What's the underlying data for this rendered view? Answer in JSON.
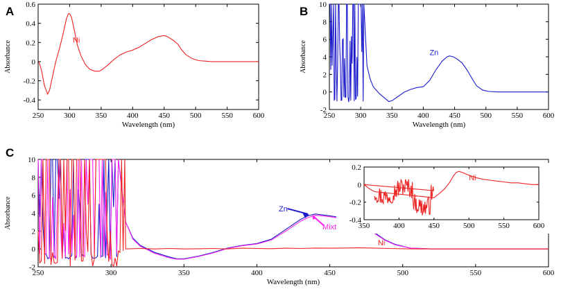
{
  "chart_data": [
    {
      "panel": "A",
      "type": "line",
      "xlabel": "Wavelength (nm)",
      "ylabel": "Absorbance",
      "xlim": [
        250,
        600
      ],
      "ylim": [
        -0.5,
        0.6
      ],
      "xticks": [
        250,
        300,
        350,
        400,
        450,
        500,
        550,
        600
      ],
      "yticks": [
        -0.4,
        -0.2,
        0,
        0.2,
        0.4,
        0.6
      ],
      "ytick_labels": [
        "-0.4",
        "-0.2",
        "0",
        "0.2",
        "0.4",
        "0.6"
      ],
      "series": [
        {
          "name": "Ni",
          "color": "#ee2222",
          "x": [
            251,
            255,
            260,
            265,
            268,
            272,
            278,
            284,
            290,
            295,
            298,
            300,
            303,
            307,
            312,
            318,
            325,
            332,
            340,
            347,
            352,
            360,
            370,
            380,
            390,
            400,
            410,
            420,
            430,
            440,
            448,
            452,
            458,
            465,
            472,
            478,
            485,
            495,
            505,
            515,
            525,
            540,
            560,
            580,
            600
          ],
          "y": [
            0.0,
            -0.08,
            -0.25,
            -0.34,
            -0.3,
            -0.18,
            0.0,
            0.14,
            0.3,
            0.45,
            0.5,
            0.5,
            0.46,
            0.34,
            0.18,
            0.06,
            -0.03,
            -0.08,
            -0.1,
            -0.1,
            -0.08,
            -0.04,
            0.02,
            0.07,
            0.1,
            0.12,
            0.15,
            0.19,
            0.23,
            0.26,
            0.27,
            0.27,
            0.25,
            0.22,
            0.18,
            0.12,
            0.07,
            0.03,
            0.01,
            0.005,
            0.0,
            0.0,
            0.0,
            0.0,
            0.0
          ]
        }
      ],
      "annotations": [
        {
          "text": "Ni",
          "x": 305,
          "y": 0.2
        }
      ]
    },
    {
      "panel": "B",
      "type": "line",
      "xlabel": "Wavelength (nm)",
      "ylabel": "Absorbance",
      "xlim": [
        250,
        600
      ],
      "ylim": [
        -2,
        10
      ],
      "xticks": [
        250,
        300,
        350,
        400,
        450,
        500,
        550,
        600
      ],
      "yticks": [
        -2,
        0,
        2,
        4,
        6,
        8,
        10
      ],
      "ytick_labels": [
        "-2",
        "0",
        "2",
        "4",
        "6",
        "8",
        "10"
      ],
      "series": [
        {
          "name": "Zn",
          "color": "#1a1acc",
          "noise_region": [
            250,
            305
          ],
          "x": [
            305,
            310,
            315,
            320,
            330,
            340,
            345,
            350,
            360,
            370,
            380,
            390,
            400,
            410,
            420,
            430,
            438,
            442,
            448,
            455,
            462,
            470,
            478,
            485,
            495,
            505,
            520,
            540,
            560,
            580,
            600
          ],
          "y": [
            10,
            3,
            1.5,
            0.6,
            -0.2,
            -0.8,
            -1.1,
            -1.0,
            -0.5,
            0.0,
            0.3,
            0.5,
            0.6,
            1.3,
            2.5,
            3.5,
            4.0,
            4.1,
            4.0,
            3.7,
            3.3,
            2.5,
            1.5,
            0.7,
            0.2,
            0.05,
            0.0,
            0.0,
            0.0,
            0.0,
            0.0
          ]
        }
      ],
      "annotations": [
        {
          "text": "Zn",
          "x": 410,
          "y": 4.2
        }
      ]
    },
    {
      "panel": "C",
      "type": "line",
      "xlabel": "Wavelength (nm)",
      "ylabel": "Absorbance",
      "xlim": [
        250,
        600
      ],
      "ylim": [
        -2,
        10
      ],
      "xticks": [
        250,
        300,
        350,
        400,
        450,
        500,
        550,
        600
      ],
      "yticks": [
        -2,
        0,
        2,
        4,
        6,
        8,
        10
      ],
      "ytick_labels": [
        "-2",
        "0",
        "2",
        "4",
        "6",
        "8",
        "10"
      ],
      "series": [
        {
          "name": "Zn",
          "color": "#1a1acc",
          "noise_region": [
            250,
            305
          ],
          "x": [
            305,
            310,
            315,
            320,
            330,
            340,
            345,
            350,
            360,
            370,
            380,
            390,
            400,
            410,
            420,
            430,
            435,
            440,
            445,
            450,
            458,
            465,
            472,
            480,
            488,
            495,
            505,
            520,
            540,
            560,
            580,
            600
          ],
          "y": [
            10,
            3,
            1.2,
            0.4,
            -0.4,
            -0.9,
            -1.1,
            -1.1,
            -0.8,
            -0.4,
            0.1,
            0.4,
            0.6,
            1.1,
            2.2,
            3.3,
            3.7,
            3.9,
            3.8,
            3.7,
            3.5,
            3.1,
            2.6,
            1.9,
            1.0,
            0.5,
            0.1,
            0.0,
            0.0,
            0.0,
            0.0,
            0.0
          ]
        },
        {
          "name": "Mixture",
          "color": "#ff22ee",
          "noise_region": [
            250,
            305
          ],
          "x": [
            305,
            310,
            315,
            320,
            330,
            340,
            345,
            350,
            360,
            370,
            380,
            390,
            400,
            410,
            420,
            430,
            435,
            440,
            445,
            450,
            458,
            465,
            472,
            480,
            488,
            495,
            505,
            520,
            540,
            560,
            580,
            600
          ],
          "y": [
            10,
            3,
            1.1,
            0.3,
            -0.5,
            -1.0,
            -1.15,
            -1.15,
            -0.85,
            -0.45,
            0.05,
            0.35,
            0.55,
            1.0,
            2.0,
            3.1,
            3.5,
            3.75,
            3.7,
            3.6,
            3.4,
            3.0,
            2.5,
            1.8,
            0.95,
            0.45,
            0.1,
            0.0,
            0.0,
            0.0,
            0.0,
            0.0
          ]
        },
        {
          "name": "Ni",
          "color": "#ee2222",
          "noise_region": [
            250,
            310
          ],
          "x": [
            310,
            320,
            330,
            340,
            350,
            360,
            370,
            380,
            390,
            400,
            410,
            420,
            430,
            440,
            450,
            460,
            470,
            480,
            490,
            500,
            510,
            520,
            540,
            560,
            580,
            600
          ],
          "y": [
            0.0,
            0.05,
            0.0,
            0.05,
            0.0,
            0.02,
            0.05,
            0.0,
            0.08,
            0.05,
            0.03,
            0.08,
            0.05,
            0.1,
            0.08,
            0.1,
            0.12,
            0.1,
            0.05,
            0.02,
            0.0,
            0.0,
            0.0,
            0.0,
            0.0,
            0.0
          ]
        }
      ],
      "annotations": [
        {
          "text": "Zn",
          "x": 415,
          "y": 4.2
        },
        {
          "text": "Mixture",
          "x": 445,
          "y": 2.2
        },
        {
          "text": "Ni",
          "x": 483,
          "y": 0.4
        }
      ],
      "inset": {
        "type": "line",
        "xlim": [
          350,
          600
        ],
        "ylim": [
          -0.4,
          0.2
        ],
        "xticks": [
          350,
          400,
          450,
          500,
          550,
          600
        ],
        "yticks": [
          -0.4,
          -0.2,
          0,
          0.2
        ],
        "ytick_labels": [
          "-0.4",
          "-0.2",
          "0",
          "0.2"
        ],
        "series": [
          {
            "name": "Ni",
            "color": "#ee2222",
            "noise_region": [
              365,
              450
            ],
            "x": [
              350,
              358,
              365,
              450,
              458,
              465,
              472,
              478,
              482,
              486,
              490,
              496,
              502,
              510,
              520,
              530,
              540,
              550,
              560,
              570,
              580,
              590,
              600
            ],
            "y": [
              0.0,
              -0.05,
              -0.08,
              -0.15,
              -0.1,
              -0.05,
              0.02,
              0.1,
              0.14,
              0.15,
              0.14,
              0.12,
              0.1,
              0.08,
              0.06,
              0.05,
              0.04,
              0.03,
              0.02,
              0.02,
              0.01,
              0.0,
              0.0
            ]
          }
        ],
        "annotations": [
          {
            "text": "Ni",
            "x": 500,
            "y": 0.05
          }
        ]
      }
    }
  ]
}
